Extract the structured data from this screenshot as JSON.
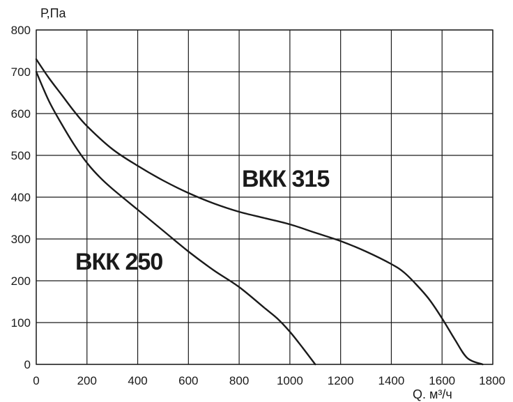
{
  "chart_data": {
    "type": "line",
    "ylabel": "Р,Па",
    "xlabel": "Q. м³/ч",
    "xlim": [
      0,
      1800
    ],
    "ylim": [
      0,
      800
    ],
    "x_ticks": [
      "0",
      "200",
      "400",
      "600",
      "800",
      "1000",
      "1200",
      "1400",
      "1600",
      "1800"
    ],
    "y_ticks": [
      "0",
      "100",
      "200",
      "300",
      "400",
      "500",
      "600",
      "700",
      "800"
    ],
    "grid": true,
    "series": [
      {
        "name": "ВКК 250",
        "points": [
          [
            0,
            700
          ],
          [
            50,
            630
          ],
          [
            100,
            575
          ],
          [
            150,
            525
          ],
          [
            200,
            482
          ],
          [
            250,
            448
          ],
          [
            300,
            420
          ],
          [
            400,
            370
          ],
          [
            500,
            320
          ],
          [
            600,
            270
          ],
          [
            700,
            225
          ],
          [
            800,
            185
          ],
          [
            900,
            135
          ],
          [
            950,
            110
          ],
          [
            1000,
            78
          ],
          [
            1050,
            40
          ],
          [
            1100,
            0
          ]
        ]
      },
      {
        "name": "ВКК 315",
        "points": [
          [
            0,
            730
          ],
          [
            50,
            685
          ],
          [
            100,
            645
          ],
          [
            150,
            605
          ],
          [
            200,
            570
          ],
          [
            300,
            515
          ],
          [
            400,
            475
          ],
          [
            500,
            440
          ],
          [
            600,
            410
          ],
          [
            700,
            385
          ],
          [
            800,
            365
          ],
          [
            900,
            350
          ],
          [
            1000,
            335
          ],
          [
            1100,
            315
          ],
          [
            1200,
            295
          ],
          [
            1300,
            270
          ],
          [
            1400,
            240
          ],
          [
            1450,
            220
          ],
          [
            1500,
            190
          ],
          [
            1550,
            155
          ],
          [
            1600,
            110
          ],
          [
            1650,
            60
          ],
          [
            1700,
            15
          ],
          [
            1760,
            0
          ]
        ]
      }
    ]
  }
}
